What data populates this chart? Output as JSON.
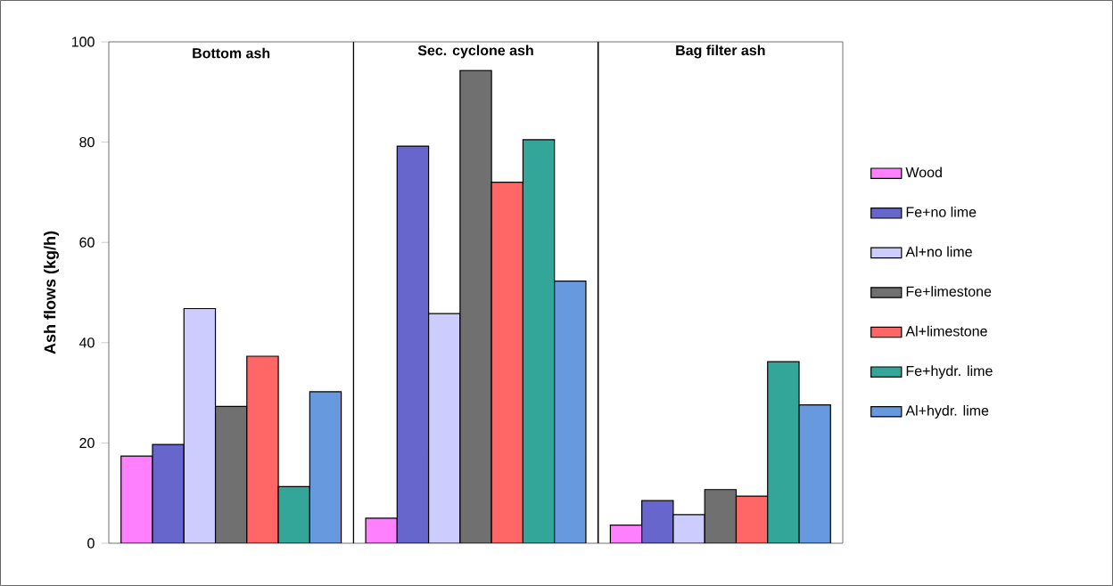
{
  "chart_data": {
    "type": "bar",
    "ylabel": "Ash flows (kg/h)",
    "categories": [
      "Bottom ash",
      "Sec. cyclone ash",
      "Bag filter ash"
    ],
    "series": [
      {
        "name": "Wood",
        "color": "#ff80ff",
        "values": [
          17.4,
          5.0,
          3.6
        ]
      },
      {
        "name": "Fe+no lime",
        "color": "#6666cc",
        "values": [
          19.7,
          79.2,
          8.5
        ]
      },
      {
        "name": "Al+no lime",
        "color": "#ccccff",
        "values": [
          46.8,
          45.8,
          5.7
        ]
      },
      {
        "name": "Fe+limestone",
        "color": "#707070",
        "values": [
          27.3,
          94.3,
          10.7
        ]
      },
      {
        "name": "Al+limestone",
        "color": "#ff6666",
        "values": [
          37.3,
          72.0,
          9.4
        ]
      },
      {
        "name": "Fe+hydr. lime",
        "color": "#33a699",
        "values": [
          11.3,
          80.5,
          36.2
        ]
      },
      {
        "name": "Al+hydr. lime",
        "color": "#6699dd",
        "values": [
          30.2,
          52.3,
          27.6
        ]
      }
    ],
    "ylim": [
      0,
      100
    ],
    "yticks": [
      0,
      20,
      40,
      60,
      80,
      100
    ],
    "legend": "right",
    "grid": false
  }
}
